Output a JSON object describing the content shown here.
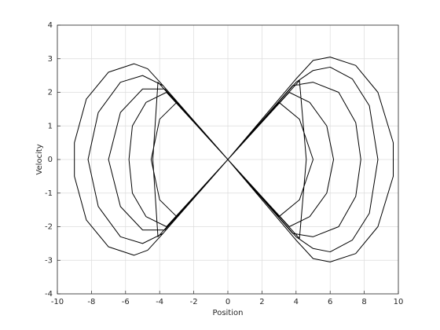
{
  "chart_data": {
    "type": "line",
    "xlabel": "Position",
    "ylabel": "Velocity",
    "x": [
      0,
      4,
      5,
      6,
      7.5,
      8.8,
      9.7,
      9.7,
      8.8,
      7.5,
      6,
      5,
      4,
      0,
      -3.8,
      -4.7,
      -5.5,
      -7,
      -8.3,
      -9,
      -9,
      -8.3,
      -7,
      -5.5,
      -4.7,
      -3.8,
      0,
      4,
      5,
      6,
      7.3,
      8.3,
      8.8,
      8.3,
      7.3,
      6,
      5,
      4,
      0,
      -3.8,
      -5,
      -6.3,
      -7.6,
      -8.2,
      -7.6,
      -6.3,
      -5,
      -3.8,
      0,
      3.8,
      5,
      6.5,
      7.5,
      7.8,
      7.5,
      6.5,
      5,
      3.8,
      0,
      -3.7,
      -5,
      -6.3,
      -7,
      -6.3,
      -5,
      -3.7,
      0,
      3.6,
      4.8,
      5.8,
      6.2,
      5.8,
      4.8,
      3.6,
      0,
      -3.6,
      -4.8,
      -5.6,
      -5.8,
      -5.6,
      -4.8,
      -3.6,
      0,
      3,
      4.2,
      5,
      4.2,
      3,
      0,
      -3,
      -4,
      -4.5,
      -4,
      -3,
      0,
      4.2,
      4.6,
      4.2,
      0,
      -4.1,
      -4.4,
      -4.1,
      0
    ],
    "values": [
      0,
      2.4,
      2.95,
      3.05,
      2.8,
      2,
      0.5,
      -0.5,
      -2,
      -2.8,
      -3.05,
      -2.95,
      -2.4,
      0,
      -2.2,
      -2.7,
      -2.85,
      -2.6,
      -1.8,
      -0.5,
      0.5,
      1.8,
      2.6,
      2.85,
      2.7,
      2.2,
      0,
      2.3,
      2.65,
      2.75,
      2.4,
      1.6,
      0,
      -1.6,
      -2.4,
      -2.75,
      -2.65,
      -2.3,
      0,
      -2.2,
      -2.5,
      -2.3,
      -1.4,
      0,
      1.4,
      2.3,
      2.5,
      2.2,
      0,
      2.2,
      2.3,
      2,
      1.1,
      0,
      -1.1,
      -2,
      -2.3,
      -2.2,
      0,
      -2.1,
      -2.1,
      -1.4,
      0,
      1.4,
      2.1,
      2.1,
      0,
      2,
      1.7,
      1,
      0,
      -1,
      -1.7,
      -2,
      0,
      -2,
      -1.7,
      -1,
      0,
      1,
      1.7,
      2,
      0,
      1.7,
      1.2,
      0,
      -1.2,
      -1.7,
      0,
      -1.7,
      -1.2,
      0,
      1.2,
      1.7,
      0,
      2.35,
      0,
      -2.35,
      0,
      -2.3,
      0,
      2.3,
      0
    ],
    "color": "#000000",
    "xlim": [
      -10,
      10
    ],
    "xticks": [
      -10,
      -8,
      -6,
      -4,
      -2,
      0,
      2,
      4,
      6,
      8,
      10
    ],
    "ylim": [
      -4,
      4
    ],
    "yticks": [
      -4,
      -3,
      -2,
      -1,
      0,
      1,
      2,
      3,
      4
    ],
    "grid": true
  }
}
